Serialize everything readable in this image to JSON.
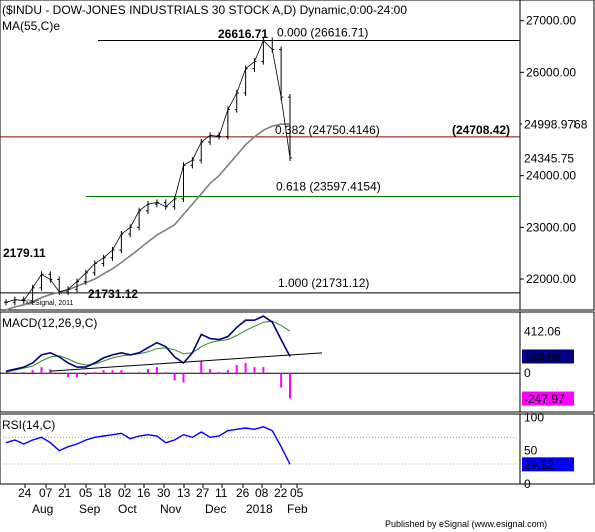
{
  "chart_data": [
    {
      "type": "line",
      "panel": "price",
      "title": "($INDU - DOW-JONES INDUSTRIALS 30 STOCK A,D) Dynamic,0:00-24:00",
      "indicator_label": "MA(55,C)e",
      "watermark": "©eSignal, 2011",
      "x_ticks": [
        "24",
        "07",
        "21",
        "05",
        "18",
        "02",
        "16",
        "30",
        "13",
        "27",
        "11",
        "26",
        "08",
        "22",
        "05"
      ],
      "x_months": [
        "Aug",
        "Sep",
        "Oct",
        "Nov",
        "Dec",
        "2018",
        "Feb"
      ],
      "x": [
        "Jul 13",
        "Jul 21",
        "Jul 24",
        "Jul 31",
        "Aug 07",
        "Aug 14",
        "Aug 21",
        "Aug 28",
        "Sep 05",
        "Sep 11",
        "Sep 18",
        "Sep 25",
        "Oct 02",
        "Oct 09",
        "Oct 16",
        "Oct 23",
        "Oct 30",
        "Nov 06",
        "Nov 13",
        "Nov 20",
        "Nov 27",
        "Dec 04",
        "Dec 11",
        "Dec 18",
        "Dec 26",
        "Jan 02",
        "Jan 08",
        "Jan 16",
        "Jan 22",
        "Jan 26",
        "Jan 29",
        "Feb 02",
        "Feb 05"
      ],
      "ylim": [
        21400,
        27400
      ],
      "y_ticks": [
        22000,
        23000,
        24000,
        25000,
        26000,
        27000
      ],
      "y_tick_labels": [
        "22000.00",
        "23000.00",
        "24000.00",
        "25000.00",
        "26000.00",
        "27000.00"
      ],
      "series": [
        {
          "role": "price",
          "color": "#000000",
          "values": [
            21550,
            21600,
            21580,
            21830,
            22090,
            21990,
            21750,
            21800,
            21950,
            22120,
            22300,
            22410,
            22560,
            22870,
            23000,
            23320,
            23450,
            23480,
            23400,
            23550,
            24200,
            24300,
            24650,
            24780,
            24760,
            25280,
            25600,
            26070,
            26210,
            26616,
            26440,
            25520,
            24345
          ]
        },
        {
          "role": "MA(55,C)e",
          "color": "#808080",
          "values": [
            21400,
            21460,
            21500,
            21560,
            21640,
            21700,
            21740,
            21790,
            21860,
            21930,
            22000,
            22100,
            22200,
            22320,
            22450,
            22580,
            22720,
            22850,
            22950,
            23050,
            23250,
            23450,
            23650,
            23850,
            24000,
            24200,
            24400,
            24600,
            24750,
            24880,
            24960,
            24999,
            24999
          ]
        }
      ],
      "fibonacci": [
        {
          "ratio_label": "0.000 (26616.71)",
          "level": 26616.71,
          "color": "#000000"
        },
        {
          "ratio_label": "0.382 (24750.4146)",
          "level": 24750.4146,
          "color": "#8b0000"
        },
        {
          "ratio_label": "0.618 (23597.4154)",
          "level": 23597.4154,
          "color": "#008000"
        },
        {
          "ratio_label": "1.000 (21731.12)",
          "level": 21731.12,
          "color": "#000000"
        }
      ],
      "annotations": [
        "26616.71",
        "21731.12",
        "2179.11",
        "(24708.42)"
      ],
      "last_labels": [
        {
          "text": "24998.9768",
          "value": 24998.9768,
          "bg": "#ffffff",
          "fg": "#000000"
        },
        {
          "text": "24345.75",
          "value": 24345.75,
          "bg": "#ffffff",
          "fg": "#ff0000"
        }
      ]
    },
    {
      "type": "line",
      "panel": "macd",
      "label": "MACD(12,26,9,C)",
      "ylim": [
        -380,
        600
      ],
      "y_ticks": [
        0
      ],
      "y_tick_labels": [
        "0"
      ],
      "series": [
        {
          "role": "macd",
          "color": "#000080",
          "values": [
            20,
            40,
            60,
            100,
            180,
            200,
            160,
            100,
            60,
            60,
            100,
            150,
            180,
            200,
            180,
            200,
            250,
            300,
            260,
            160,
            100,
            200,
            380,
            340,
            330,
            360,
            450,
            520,
            520,
            560,
            500,
            330,
            164
          ]
        },
        {
          "role": "signal",
          "color": "#2a8a2a",
          "values": [
            10,
            30,
            50,
            70,
            120,
            160,
            170,
            140,
            100,
            80,
            90,
            120,
            150,
            170,
            180,
            190,
            210,
            240,
            250,
            230,
            190,
            200,
            260,
            300,
            320,
            330,
            370,
            420,
            460,
            500,
            510,
            470,
            412
          ]
        }
      ],
      "histogram": [
        10,
        10,
        10,
        30,
        60,
        40,
        -10,
        -40,
        -40,
        -20,
        10,
        30,
        30,
        30,
        0,
        10,
        40,
        60,
        10,
        -70,
        -90,
        0,
        120,
        40,
        10,
        30,
        80,
        100,
        60,
        60,
        -10,
        -140,
        -248
      ],
      "trendline_label": "",
      "last_labels": [
        {
          "text": "412.06",
          "value": 412.06,
          "bg": "#ffffff",
          "fg": "#2a8a2a"
        },
        {
          "text": "164.08",
          "value": 164.08,
          "bg": "#000080",
          "fg": "#ffffff"
        },
        {
          "text": "-247.97",
          "value": -247.97,
          "bg": "#ff00ff",
          "fg": "#ffffff"
        }
      ]
    },
    {
      "type": "line",
      "panel": "rsi",
      "label": "RSI(14,C)",
      "ylim": [
        0,
        105
      ],
      "y_ticks": [
        0,
        50,
        100
      ],
      "y_tick_labels": [
        "0",
        "50",
        "100"
      ],
      "guides": [
        30,
        70
      ],
      "series": [
        {
          "role": "rsi",
          "color": "#0000ff",
          "values": [
            62,
            66,
            60,
            66,
            70,
            62,
            50,
            56,
            60,
            66,
            70,
            72,
            74,
            76,
            68,
            72,
            74,
            72,
            62,
            66,
            74,
            70,
            78,
            70,
            72,
            80,
            82,
            84,
            82,
            86,
            80,
            56,
            29.52
          ]
        }
      ],
      "last_labels": [
        {
          "text": "29.52",
          "value": 29.52,
          "bg": "#0000ff",
          "fg": "#ffffff"
        }
      ]
    }
  ],
  "footer": {
    "published": "Published by eSignal (www.esignal.com)"
  }
}
